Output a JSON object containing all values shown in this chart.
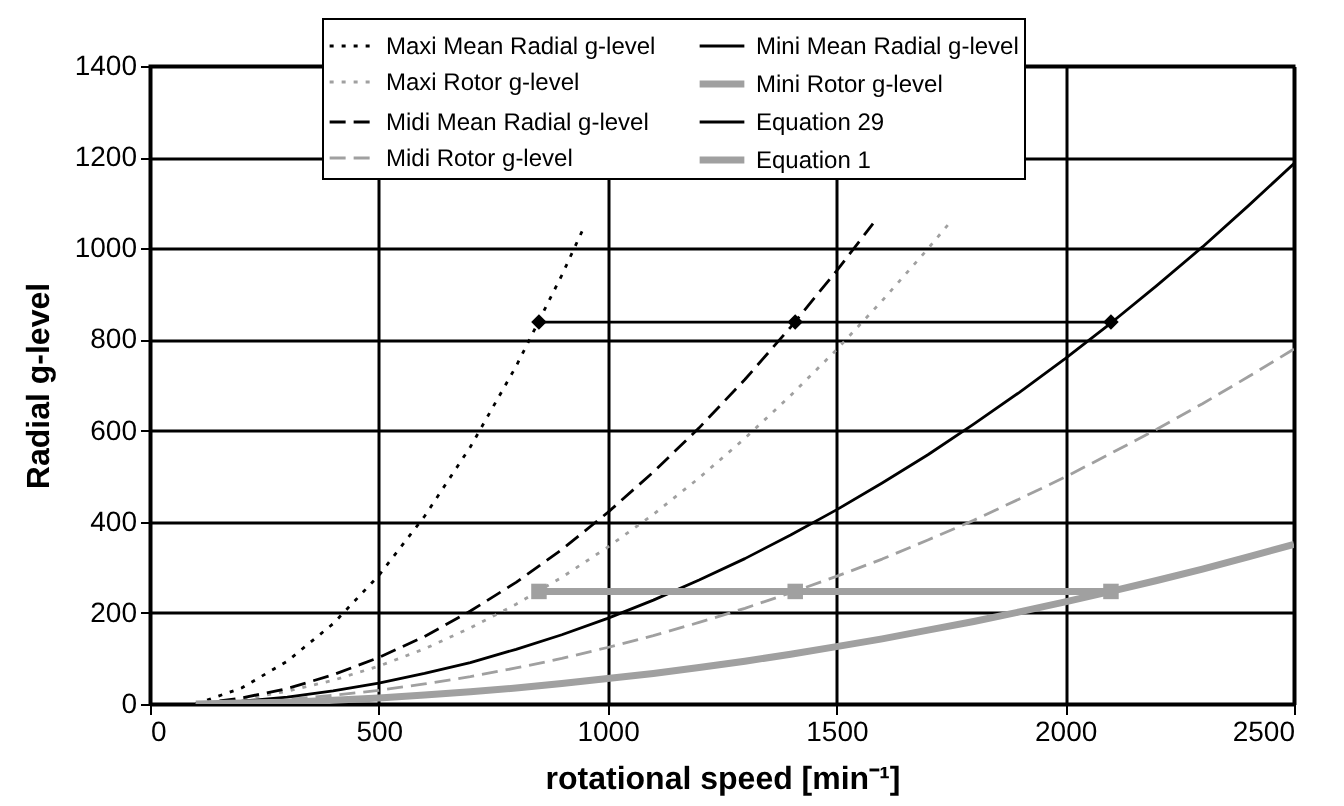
{
  "chart_data": {
    "type": "line",
    "xlabel": "rotational speed [min⁻¹]",
    "ylabel": "Radial g-level",
    "xlim": [
      0,
      2500
    ],
    "ylim": [
      0,
      1400
    ],
    "xticks": [
      0,
      500,
      1000,
      1500,
      2000,
      2500
    ],
    "yticks": [
      0,
      200,
      400,
      600,
      800,
      1000,
      1200,
      1400
    ],
    "grid": true,
    "legend": "top",
    "series": [
      {
        "name": "Maxi Mean Radial g-level",
        "color": "#000000",
        "line_style": "dotted",
        "x": [
          100,
          200,
          300,
          400,
          500,
          600,
          700,
          800,
          900,
          950
        ],
        "values": [
          0,
          35,
          94,
          176,
          282,
          412,
          564,
          741,
          941,
          1050
        ]
      },
      {
        "name": "Maxi Rotor g-level",
        "color": "#a0a0a0",
        "line_style": "dotted",
        "x": [
          100,
          200,
          300,
          400,
          500,
          600,
          700,
          800,
          900,
          1000,
          1100,
          1200,
          1300,
          1400,
          1500,
          1600,
          1700,
          1750
        ],
        "values": [
          0,
          10,
          28,
          52,
          83,
          121,
          167,
          219,
          278,
          344,
          416,
          496,
          583,
          677,
          777,
          885,
          999,
          1059
        ]
      },
      {
        "name": "Midi Mean Radial g-level",
        "color": "#000000",
        "line_style": "dashed",
        "x": [
          100,
          200,
          300,
          400,
          500,
          600,
          700,
          800,
          900,
          1000,
          1100,
          1200,
          1300,
          1400,
          1500,
          1580
        ],
        "values": [
          0,
          13,
          34,
          64,
          102,
          148,
          204,
          267,
          339,
          420,
          509,
          606,
          712,
          827,
          950,
          1054
        ]
      },
      {
        "name": "Midi Rotor g-level",
        "color": "#a0a0a0",
        "line_style": "dashed",
        "x": [
          100,
          200,
          300,
          400,
          500,
          600,
          700,
          800,
          900,
          1000,
          1100,
          1200,
          1300,
          1400,
          1500,
          1600,
          1700,
          1800,
          1900,
          2000,
          2100,
          2200,
          2300,
          2400,
          2500
        ],
        "values": [
          0,
          4,
          10,
          19,
          30,
          44,
          60,
          79,
          100,
          124,
          150,
          179,
          210,
          244,
          280,
          318,
          360,
          403,
          450,
          498,
          550,
          603,
          659,
          718,
          779
        ]
      },
      {
        "name": "Mini Mean Radial g-level",
        "color": "#000000",
        "line_style": "solid",
        "x": [
          100,
          200,
          300,
          400,
          500,
          600,
          700,
          800,
          900,
          1000,
          1100,
          1200,
          1300,
          1400,
          1500,
          1600,
          1700,
          1800,
          1900,
          2000,
          2100,
          2200,
          2300,
          2400,
          2500
        ],
        "values": [
          0,
          6,
          15,
          29,
          46,
          67,
          91,
          120,
          152,
          188,
          228,
          272,
          319,
          371,
          426,
          485,
          547,
          614,
          684,
          758,
          836,
          918,
          1003,
          1093,
          1186
        ]
      },
      {
        "name": "Mini Rotor g-level",
        "color": "#a0a0a0",
        "line_style": "solid",
        "x": [
          100,
          200,
          300,
          400,
          500,
          600,
          700,
          800,
          900,
          1000,
          1100,
          1200,
          1300,
          1400,
          1500,
          1600,
          1700,
          1800,
          1900,
          2000,
          2100,
          2200,
          2300,
          2400,
          2500
        ],
        "values": [
          0,
          2,
          4,
          8,
          13,
          20,
          27,
          35,
          45,
          56,
          67,
          80,
          94,
          109,
          126,
          143,
          162,
          181,
          202,
          224,
          247,
          271,
          296,
          323,
          350
        ]
      },
      {
        "name": "Equation 29",
        "color": "#000000",
        "line_style": "solid",
        "marker": "diamond",
        "x": [
          850,
          1410,
          2100
        ],
        "values": [
          838,
          838,
          838
        ]
      },
      {
        "name": "Equation 1",
        "color": "#a0a0a0",
        "line_style": "solid",
        "marker": "square",
        "x": [
          850,
          1410,
          2100
        ],
        "values": [
          247,
          247,
          247
        ]
      }
    ]
  }
}
